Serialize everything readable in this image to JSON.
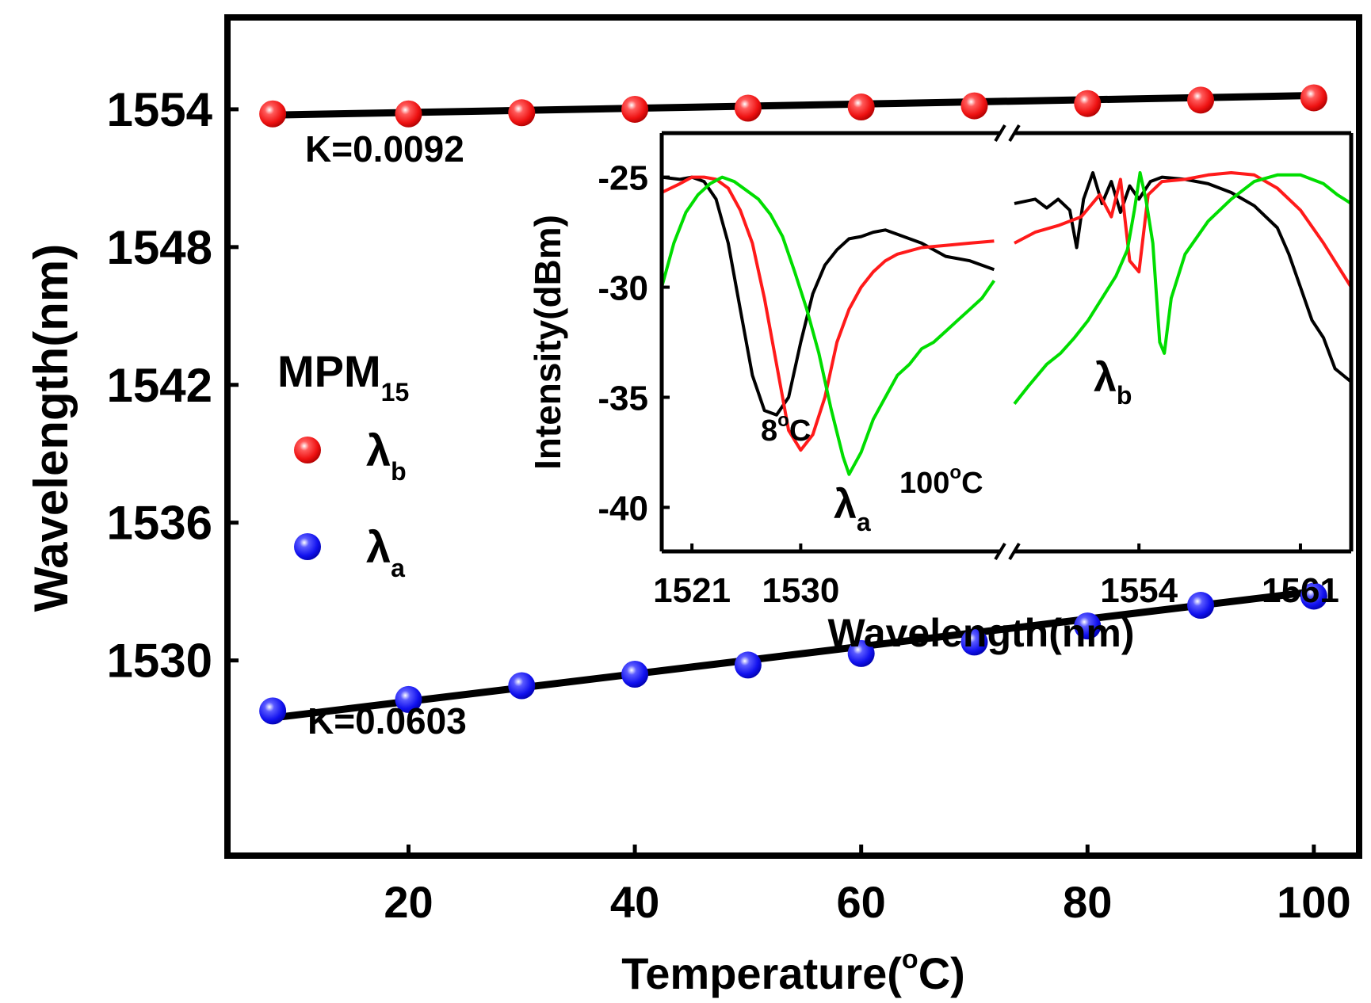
{
  "chart_data": [
    {
      "type": "scatter",
      "title": "",
      "xlabel": "Temperature(°C)",
      "xlabel_main": "Temperature(",
      "xlabel_deg": "o",
      "xlabel_unit": "C)",
      "ylabel": "Wavelength(nm)",
      "xlim": [
        4,
        104
      ],
      "ylim": [
        1521.5,
        1558
      ],
      "xticks": [
        20,
        40,
        60,
        80,
        100
      ],
      "xticklabels": [
        "20",
        "40",
        "60",
        "80",
        "100"
      ],
      "yticks": [
        1530,
        1536,
        1542,
        1548,
        1554
      ],
      "yticklabels": [
        "1530",
        "1536",
        "1542",
        "1548",
        "1554"
      ],
      "x": [
        8,
        20,
        30,
        40,
        50,
        60,
        70,
        80,
        90,
        100
      ],
      "series": [
        {
          "name": "λb",
          "color": "#ff1a1a",
          "values": [
            1553.8,
            1553.8,
            1553.85,
            1554.0,
            1554.05,
            1554.1,
            1554.15,
            1554.25,
            1554.4,
            1554.5
          ],
          "fit_slope_label": "K=0.0092",
          "fit": [
            [
              8,
              1553.75
            ],
            [
              100,
              1554.6
            ]
          ]
        },
        {
          "name": "λa",
          "color": "#1a1aff",
          "values": [
            1527.8,
            1528.3,
            1528.9,
            1529.4,
            1529.8,
            1530.3,
            1530.8,
            1531.5,
            1532.4,
            1532.8
          ],
          "fit_slope_label": "K=0.0603",
          "fit": [
            [
              8,
              1527.5
            ],
            [
              100,
              1533.0
            ]
          ]
        }
      ],
      "legend": {
        "title": "MPM",
        "title_subscript": "15",
        "entries": [
          {
            "symbol": "λ",
            "subscript": "b",
            "color": "#ff1a1a"
          },
          {
            "symbol": "λ",
            "subscript": "a",
            "color": "#1a1aff"
          }
        ],
        "placement": "center-left"
      }
    },
    {
      "type": "line",
      "placement": "inset top-right",
      "xlabel": "Wavelength(nm)",
      "ylabel": "Intensity(dBm)",
      "ylim": [
        -42,
        -23
      ],
      "yticks": [
        -25,
        -30,
        -35,
        -40
      ],
      "yticklabels": [
        "-25",
        "-30",
        "-35",
        "-40"
      ],
      "broken_axis": true,
      "segments": [
        {
          "xlim": [
            1518.5,
            1546.5
          ],
          "xticks": [
            1521,
            1530
          ],
          "xticklabels": [
            "1521",
            "1530"
          ]
        },
        {
          "xlim": [
            1548.6,
            1563.2
          ],
          "xticks": [
            1554,
            1561
          ],
          "xticklabels": [
            "1554",
            "1561"
          ]
        }
      ],
      "series": [
        {
          "name": "8°C",
          "color": "#000000",
          "seg1": [
            [
              1518.5,
              -25
            ],
            [
              1520,
              -25.1
            ],
            [
              1521,
              -25
            ],
            [
              1522,
              -25.2
            ],
            [
              1523,
              -26
            ],
            [
              1524,
              -28
            ],
            [
              1525,
              -31
            ],
            [
              1526,
              -34
            ],
            [
              1527,
              -35.6
            ],
            [
              1528,
              -35.8
            ],
            [
              1529,
              -35
            ],
            [
              1530,
              -32.5
            ],
            [
              1531,
              -30.3
            ],
            [
              1532,
              -29
            ],
            [
              1533,
              -28.3
            ],
            [
              1534,
              -27.8
            ],
            [
              1535,
              -27.7
            ],
            [
              1536,
              -27.5
            ],
            [
              1537,
              -27.4
            ],
            [
              1538,
              -27.6
            ],
            [
              1540,
              -28
            ],
            [
              1542,
              -28.6
            ],
            [
              1544,
              -28.8
            ],
            [
              1546,
              -29.2
            ]
          ],
          "seg2": [
            [
              1548.6,
              -26.2
            ],
            [
              1549.5,
              -26
            ],
            [
              1550,
              -26.4
            ],
            [
              1550.5,
              -26
            ],
            [
              1551,
              -26.5
            ],
            [
              1551.3,
              -28.2
            ],
            [
              1551.6,
              -26
            ],
            [
              1552,
              -24.8
            ],
            [
              1552.4,
              -26.2
            ],
            [
              1552.8,
              -25.2
            ],
            [
              1553.2,
              -26.6
            ],
            [
              1553.6,
              -25.4
            ],
            [
              1554,
              -26
            ],
            [
              1554.5,
              -25.2
            ],
            [
              1555,
              -25
            ],
            [
              1556,
              -25.1
            ],
            [
              1557,
              -25.3
            ],
            [
              1558,
              -25.7
            ],
            [
              1559,
              -26.3
            ],
            [
              1560,
              -27.3
            ],
            [
              1560.5,
              -28.5
            ],
            [
              1561,
              -30
            ],
            [
              1561.5,
              -31.5
            ],
            [
              1562,
              -32.3
            ],
            [
              1562.5,
              -33.7
            ],
            [
              1563.2,
              -34.3
            ]
          ]
        },
        {
          "name": "",
          "color": "#ff1a1a",
          "seg1": [
            [
              1518.5,
              -25.7
            ],
            [
              1520,
              -25.3
            ],
            [
              1521,
              -25
            ],
            [
              1522,
              -25
            ],
            [
              1523,
              -25.1
            ],
            [
              1524,
              -25.5
            ],
            [
              1525,
              -26.5
            ],
            [
              1526,
              -28
            ],
            [
              1527,
              -30.5
            ],
            [
              1528,
              -33.5
            ],
            [
              1529,
              -36.5
            ],
            [
              1530,
              -37.4
            ],
            [
              1531,
              -36.7
            ],
            [
              1532,
              -35
            ],
            [
              1533,
              -32.5
            ],
            [
              1534,
              -31
            ],
            [
              1535,
              -30
            ],
            [
              1536,
              -29.3
            ],
            [
              1537,
              -28.8
            ],
            [
              1538,
              -28.5
            ],
            [
              1540,
              -28.2
            ],
            [
              1542,
              -28.1
            ],
            [
              1544,
              -28
            ],
            [
              1546,
              -27.9
            ]
          ],
          "seg2": [
            [
              1548.6,
              -28
            ],
            [
              1549.5,
              -27.5
            ],
            [
              1550.5,
              -27.2
            ],
            [
              1551.5,
              -26.8
            ],
            [
              1552.3,
              -25.8
            ],
            [
              1552.8,
              -26.8
            ],
            [
              1553.2,
              -25.1
            ],
            [
              1553.6,
              -28.8
            ],
            [
              1554,
              -29.3
            ],
            [
              1554.4,
              -25.8
            ],
            [
              1555,
              -25.2
            ],
            [
              1556,
              -25.1
            ],
            [
              1557,
              -24.9
            ],
            [
              1558,
              -24.8
            ],
            [
              1559,
              -24.9
            ],
            [
              1560,
              -25.5
            ],
            [
              1561,
              -26.5
            ],
            [
              1562,
              -28
            ],
            [
              1563.2,
              -30
            ]
          ]
        },
        {
          "name": "100°C",
          "color": "#00dd00",
          "seg1": [
            [
              1518.5,
              -30
            ],
            [
              1519.5,
              -28
            ],
            [
              1520.5,
              -26.6
            ],
            [
              1521.5,
              -25.8
            ],
            [
              1522.5,
              -25.3
            ],
            [
              1523.5,
              -25
            ],
            [
              1524.5,
              -25.2
            ],
            [
              1525.5,
              -25.6
            ],
            [
              1526.5,
              -26
            ],
            [
              1527.5,
              -26.7
            ],
            [
              1528.5,
              -27.7
            ],
            [
              1529.5,
              -29.3
            ],
            [
              1530.5,
              -31
            ],
            [
              1531.5,
              -33
            ],
            [
              1532.5,
              -35.5
            ],
            [
              1533.5,
              -37.7
            ],
            [
              1534,
              -38.5
            ],
            [
              1535,
              -37.5
            ],
            [
              1536,
              -36
            ],
            [
              1537,
              -35
            ],
            [
              1538,
              -34
            ],
            [
              1539,
              -33.5
            ],
            [
              1540,
              -32.8
            ],
            [
              1541,
              -32.5
            ],
            [
              1542,
              -32
            ],
            [
              1543,
              -31.5
            ],
            [
              1544,
              -31
            ],
            [
              1545,
              -30.5
            ],
            [
              1546,
              -29.7
            ]
          ],
          "seg2": [
            [
              1548.6,
              -35.3
            ],
            [
              1549.2,
              -34.5
            ],
            [
              1550,
              -33.5
            ],
            [
              1550.6,
              -33
            ],
            [
              1551.2,
              -32.3
            ],
            [
              1551.8,
              -31.5
            ],
            [
              1552.4,
              -30.5
            ],
            [
              1553,
              -29.5
            ],
            [
              1553.5,
              -28.3
            ],
            [
              1553.8,
              -26.5
            ],
            [
              1554.05,
              -24.8
            ],
            [
              1554.3,
              -26
            ],
            [
              1554.6,
              -28
            ],
            [
              1554.9,
              -32.5
            ],
            [
              1555.1,
              -33
            ],
            [
              1555.4,
              -30.5
            ],
            [
              1556,
              -28.5
            ],
            [
              1557,
              -27
            ],
            [
              1558,
              -26
            ],
            [
              1559,
              -25.2
            ],
            [
              1560,
              -24.9
            ],
            [
              1561,
              -24.9
            ],
            [
              1562,
              -25.3
            ],
            [
              1562.6,
              -25.8
            ],
            [
              1563.2,
              -26.2
            ]
          ]
        }
      ],
      "annotations": {
        "label_8C": "8",
        "label_100C": "100",
        "deg": "o",
        "unit": "C",
        "lambda": "λ",
        "sub_a": "a",
        "sub_b": "b"
      }
    }
  ]
}
